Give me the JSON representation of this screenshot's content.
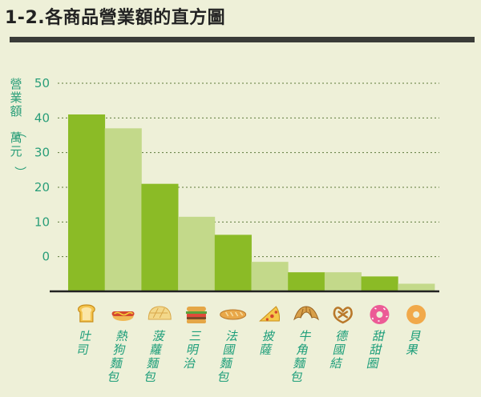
{
  "page": {
    "title": "1-2.各商品營業額的直方圖"
  },
  "chart_data": {
    "type": "bar",
    "title": "1-2.各商品營業額的直方圖",
    "ylabel": "營業額(萬元)",
    "xlabel": "",
    "y_tick_labels": [
      "50",
      "40",
      "30",
      "20",
      "10",
      "0"
    ],
    "ylim": [
      -10,
      50
    ],
    "grid": true,
    "categories": [
      "吐司",
      "熱狗麵包",
      "菠蘿麵包",
      "三明治",
      "法國麵包",
      "披薩",
      "牛角麵包",
      "德國結",
      "甜甜圈",
      "貝果"
    ],
    "values": [
      41,
      37,
      21,
      11.5,
      6.3,
      -1.5,
      -4.5,
      -4.5,
      -5.7,
      -7.8
    ],
    "category_icons": [
      "toast-icon",
      "hotdog-icon",
      "melon-bun-icon",
      "sandwich-icon",
      "baguette-icon",
      "pizza-icon",
      "croissant-icon",
      "pretzel-icon",
      "donut-icon",
      "bagel-icon"
    ],
    "colors": {
      "bar_dark": "#8bbb26",
      "bar_light": "#c3d98a",
      "axis_text": "#2a9e79",
      "grid": "#5d7a3a"
    }
  }
}
